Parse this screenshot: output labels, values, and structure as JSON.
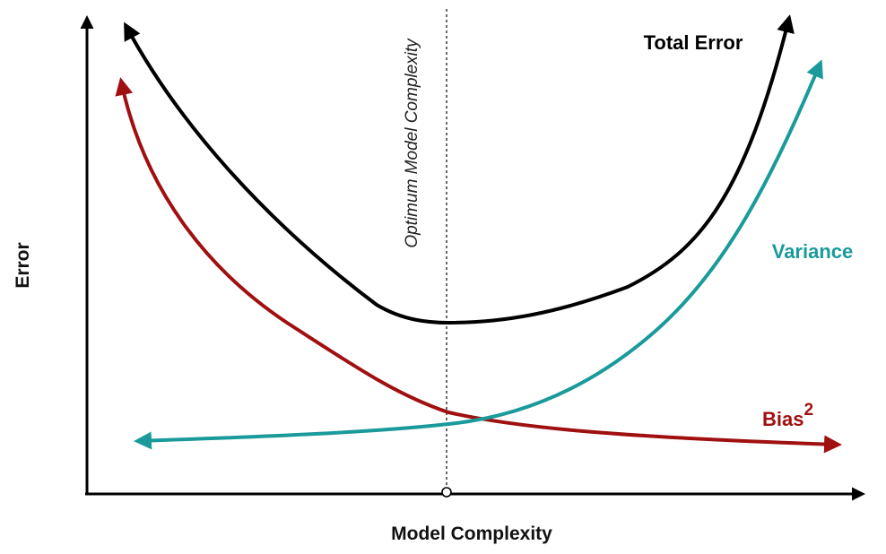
{
  "labels": {
    "y_axis": "Error",
    "x_axis": "Model Complexity",
    "optimum": "Optimum Model Complexity",
    "total_error": "Total Error",
    "variance": "Variance",
    "bias": "Bias",
    "bias_superscript": "2"
  },
  "colors": {
    "total_error": "#000000",
    "variance": "#1a9a9a",
    "bias": "#a01010",
    "axes": "#000000",
    "optimum_line": "#444444"
  }
}
